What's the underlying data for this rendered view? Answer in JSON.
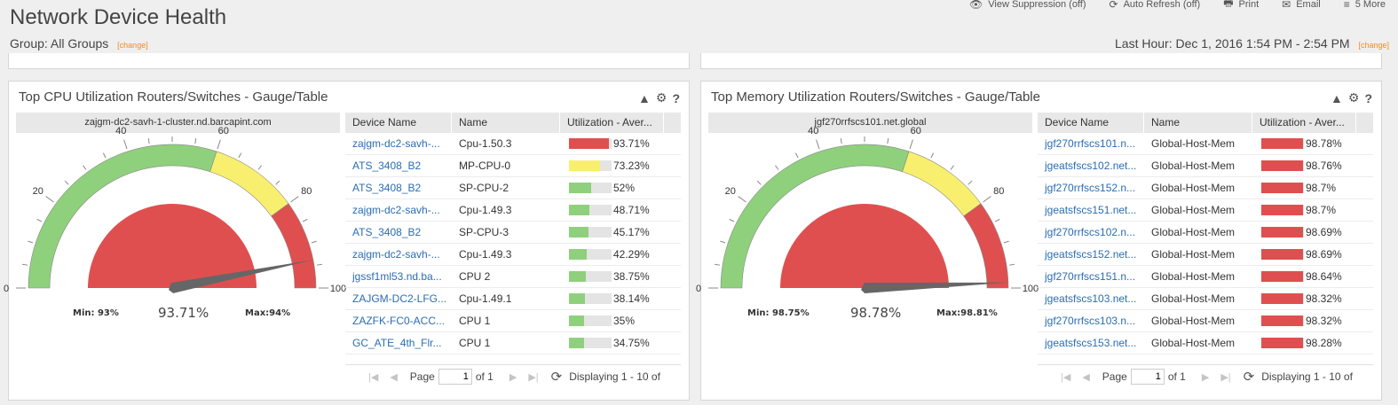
{
  "header": {
    "title": "Network Device Health",
    "group_label": "Group: All Groups",
    "group_change": "[change]",
    "time_label": "Last Hour: Dec 1, 2016 1:54 PM - 2:54 PM",
    "time_change": "[change]"
  },
  "toolbar": [
    {
      "icon": "👁",
      "label": "View Suppression (off)"
    },
    {
      "icon": "⟳",
      "label": "Auto Refresh (off)"
    },
    {
      "icon": "🖶",
      "label": "Print"
    },
    {
      "icon": "✉",
      "label": "Email"
    },
    {
      "icon": "≡",
      "label": "5 More"
    }
  ],
  "colors": {
    "red": "#e04f4f",
    "yellow": "#f9ef6e",
    "green": "#8fd07c",
    "link": "#2a6db3",
    "accent": "#f08c1e"
  },
  "panels": [
    {
      "title": "Top CPU Utilization Routers/Switches - Gauge/Table",
      "gauge": {
        "device": "zajgm-dc2-savh-1-cluster.nd.barcapint.com",
        "value": 93.71,
        "value_label": "93.71%",
        "min_label": "Min: 93%",
        "max_label": "Max:94%",
        "range": [
          0,
          100
        ],
        "ticks": [
          "0",
          "20",
          "40",
          "60",
          "80",
          "100"
        ],
        "bands": [
          {
            "from": 0,
            "to": 60,
            "color": "green"
          },
          {
            "from": 60,
            "to": 80,
            "color": "yellow"
          },
          {
            "from": 80,
            "to": 100,
            "color": "red"
          }
        ]
      },
      "columns": [
        "Device Name",
        "Name",
        "Utilization - Aver..."
      ],
      "rows": [
        {
          "device": "zajgm-dc2-savh-...",
          "name": "Cpu-1.50.3",
          "util": 93.71,
          "util_label": "93.71%",
          "color": "red"
        },
        {
          "device": "ATS_3408_B2",
          "name": "MP-CPU-0",
          "util": 73.23,
          "util_label": "73.23%",
          "color": "yellow"
        },
        {
          "device": "ATS_3408_B2",
          "name": "SP-CPU-2",
          "util": 52,
          "util_label": "52%",
          "color": "green"
        },
        {
          "device": "zajgm-dc2-savh-...",
          "name": "Cpu-1.49.3",
          "util": 48.71,
          "util_label": "48.71%",
          "color": "green"
        },
        {
          "device": "ATS_3408_B2",
          "name": "SP-CPU-3",
          "util": 45.17,
          "util_label": "45.17%",
          "color": "green"
        },
        {
          "device": "zajgm-dc2-savh-...",
          "name": "Cpu-1.49.3",
          "util": 42.29,
          "util_label": "42.29%",
          "color": "green"
        },
        {
          "device": "jgssf1ml53.nd.ba...",
          "name": "CPU 2",
          "util": 38.75,
          "util_label": "38.75%",
          "color": "green"
        },
        {
          "device": "ZAJGM-DC2-LFG...",
          "name": "Cpu-1.49.1",
          "util": 38.14,
          "util_label": "38.14%",
          "color": "green"
        },
        {
          "device": "ZAZFK-FC0-ACC...",
          "name": "CPU 1",
          "util": 35,
          "util_label": "35%",
          "color": "green"
        },
        {
          "device": "GC_ATE_4th_Flr...",
          "name": "CPU 1",
          "util": 34.75,
          "util_label": "34.75%",
          "color": "green"
        }
      ],
      "pager": {
        "page_label": "Page",
        "page_value": "1",
        "of_label": "of 1",
        "display": "Displaying 1 - 10 of"
      }
    },
    {
      "title": "Top Memory Utilization Routers/Switches - Gauge/Table",
      "gauge": {
        "device": "jgf270rrfscs101.net.global",
        "value": 98.78,
        "value_label": "98.78%",
        "min_label": "Min: 98.75%",
        "max_label": "Max:98.81%",
        "range": [
          0,
          100
        ],
        "ticks": [
          "0",
          "20",
          "40",
          "60",
          "80",
          "100"
        ],
        "bands": [
          {
            "from": 0,
            "to": 60,
            "color": "green"
          },
          {
            "from": 60,
            "to": 80,
            "color": "yellow"
          },
          {
            "from": 80,
            "to": 100,
            "color": "red"
          }
        ]
      },
      "columns": [
        "Device Name",
        "Name",
        "Utilization - Aver..."
      ],
      "rows": [
        {
          "device": "jgf270rrfscs101.n...",
          "name": "Global-Host-Mem",
          "util": 98.78,
          "util_label": "98.78%",
          "color": "red"
        },
        {
          "device": "jgeatsfscs102.net...",
          "name": "Global-Host-Mem",
          "util": 98.76,
          "util_label": "98.76%",
          "color": "red"
        },
        {
          "device": "jgf270rrfscs152.n...",
          "name": "Global-Host-Mem",
          "util": 98.7,
          "util_label": "98.7%",
          "color": "red"
        },
        {
          "device": "jgeatsfscs151.net...",
          "name": "Global-Host-Mem",
          "util": 98.7,
          "util_label": "98.7%",
          "color": "red"
        },
        {
          "device": "jgf270rrfscs102.n...",
          "name": "Global-Host-Mem",
          "util": 98.69,
          "util_label": "98.69%",
          "color": "red"
        },
        {
          "device": "jgeatsfscs152.net...",
          "name": "Global-Host-Mem",
          "util": 98.69,
          "util_label": "98.69%",
          "color": "red"
        },
        {
          "device": "jgf270rrfscs151.n...",
          "name": "Global-Host-Mem",
          "util": 98.64,
          "util_label": "98.64%",
          "color": "red"
        },
        {
          "device": "jgeatsfscs103.net...",
          "name": "Global-Host-Mem",
          "util": 98.32,
          "util_label": "98.32%",
          "color": "red"
        },
        {
          "device": "jgf270rrfscs103.n...",
          "name": "Global-Host-Mem",
          "util": 98.32,
          "util_label": "98.32%",
          "color": "red"
        },
        {
          "device": "jgeatsfscs153.net...",
          "name": "Global-Host-Mem",
          "util": 98.28,
          "util_label": "98.28%",
          "color": "red"
        }
      ],
      "pager": {
        "page_label": "Page",
        "page_value": "1",
        "of_label": "of 1",
        "display": "Displaying 1 - 10 of"
      }
    }
  ]
}
